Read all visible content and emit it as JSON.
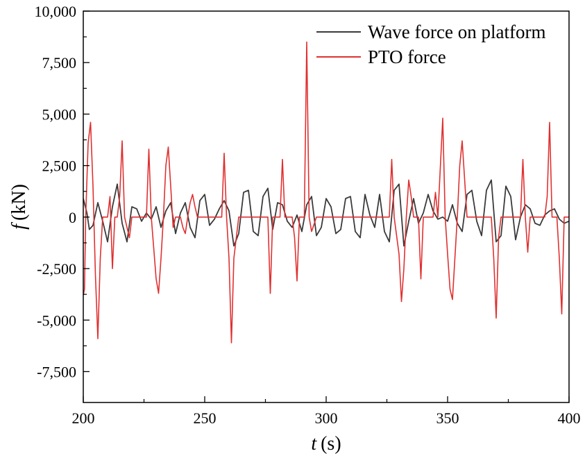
{
  "chart_data": {
    "type": "line",
    "title": "",
    "xlabel": "t",
    "xlabel_unit": "(s)",
    "ylabel": "f",
    "ylabel_unit": "(kN)",
    "xlim": [
      200,
      400
    ],
    "ylim": [
      -9000,
      10000
    ],
    "x_ticks": [
      200,
      250,
      300,
      350,
      400
    ],
    "x_tick_labels": [
      "200",
      "250",
      "300",
      "350",
      "400"
    ],
    "y_ticks": [
      -7500,
      -5000,
      -2500,
      0,
      2500,
      5000,
      7500,
      10000
    ],
    "y_tick_labels": [
      "-7,500",
      "-5,000",
      "-2,500",
      "0",
      "2,500",
      "5,000",
      "7,500",
      "10,000"
    ],
    "grid": false,
    "legend_position": "top-right",
    "colors": {
      "wave": "#3a3a3a",
      "pto": "#e03030"
    },
    "series": [
      {
        "name": "Wave force on platform",
        "x": [
          200,
          201.5,
          202.5,
          204,
          206,
          208,
          210,
          212,
          214,
          216,
          218,
          220,
          222,
          224,
          226,
          228,
          230,
          232,
          234,
          236,
          238,
          240,
          242,
          244,
          246,
          248,
          250,
          252,
          254,
          256,
          258,
          260,
          262,
          264,
          266,
          268,
          270,
          272,
          274,
          276,
          278,
          280,
          282,
          284,
          286,
          288,
          290,
          292,
          294,
          296,
          298,
          300,
          302,
          304,
          306,
          308,
          310,
          312,
          314,
          316,
          318,
          320,
          322,
          324,
          326,
          328,
          330,
          332,
          334,
          336,
          338,
          340,
          342,
          344,
          346,
          348,
          350,
          352,
          354,
          356,
          358,
          360,
          362,
          364,
          366,
          368,
          370,
          372,
          374,
          376,
          378,
          380,
          382,
          384,
          386,
          388,
          390,
          392,
          394,
          396,
          398,
          400
        ],
        "y": [
          900,
          200,
          -600,
          -400,
          700,
          -200,
          -1200,
          500,
          1600,
          -300,
          -1200,
          500,
          400,
          -200,
          200,
          -100,
          500,
          -500,
          300,
          700,
          -800,
          200,
          700,
          -500,
          -1000,
          800,
          1100,
          -400,
          -100,
          400,
          800,
          300,
          -1400,
          -800,
          1200,
          1300,
          -700,
          -900,
          1000,
          1400,
          -600,
          700,
          600,
          -200,
          -500,
          100,
          -700,
          600,
          1000,
          -900,
          -500,
          900,
          500,
          -800,
          -600,
          900,
          1000,
          -700,
          -1000,
          1100,
          100,
          -500,
          1100,
          -700,
          -1200,
          1300,
          1600,
          -1400,
          -200,
          900,
          -300,
          200,
          1100,
          300,
          -100,
          0,
          -200,
          600,
          -300,
          -700,
          1100,
          1300,
          -200,
          -900,
          1300,
          1800,
          -1200,
          -900,
          1500,
          1000,
          -1100,
          0,
          600,
          400,
          -300,
          -400,
          100,
          300,
          400,
          -100,
          -300,
          -200
        ]
      },
      {
        "name": "PTO force",
        "x": [
          200,
          200.5,
          201,
          202,
          203,
          204,
          205,
          206,
          207,
          208,
          210,
          211,
          212,
          213,
          214,
          215,
          216,
          217,
          218,
          219,
          220,
          221,
          222,
          223,
          224,
          225,
          226,
          227,
          228,
          229,
          230,
          231,
          232,
          233,
          234,
          235,
          236,
          237,
          238,
          239,
          240,
          241,
          242,
          243,
          244,
          245,
          246,
          247,
          248,
          249,
          250,
          252,
          254,
          256,
          257,
          258,
          259,
          260,
          261,
          262,
          264,
          266,
          268,
          270,
          272,
          274,
          275,
          276,
          277,
          278,
          280,
          281,
          282,
          283,
          284,
          286,
          287,
          288,
          289,
          290,
          291,
          292,
          293,
          294,
          296,
          298,
          300,
          302,
          304,
          306,
          308,
          310,
          312,
          314,
          316,
          318,
          320,
          322,
          324,
          326,
          327,
          328,
          330,
          331,
          332,
          333,
          334,
          335,
          336,
          338,
          339,
          340,
          342,
          344,
          345,
          346,
          348,
          349,
          350,
          351,
          352,
          353,
          354,
          355,
          356,
          358,
          360,
          362,
          364,
          366,
          368,
          369,
          370,
          371,
          372,
          374,
          376,
          378,
          380,
          381,
          382,
          383,
          384,
          386,
          388,
          390,
          391,
          392,
          393,
          394,
          395,
          396,
          397,
          398,
          400
        ],
        "y": [
          -3800,
          -3500,
          0,
          3600,
          4600,
          1500,
          -2800,
          -5900,
          -2000,
          0,
          0,
          1000,
          -2500,
          0,
          0,
          1000,
          3700,
          0,
          -500,
          -1000,
          0,
          0,
          0,
          0,
          0,
          0,
          0,
          3300,
          0,
          -1500,
          -3000,
          -3700,
          -2000,
          0,
          2500,
          3400,
          1500,
          -500,
          0,
          0,
          0,
          -500,
          -800,
          0,
          700,
          1100,
          500,
          0,
          0,
          0,
          0,
          0,
          0,
          0,
          0,
          3100,
          0,
          -2000,
          -6100,
          -2000,
          0,
          0,
          0,
          0,
          0,
          0,
          0,
          0,
          -3700,
          0,
          0,
          0,
          2800,
          0,
          0,
          0,
          -1000,
          -3100,
          0,
          0,
          0,
          8500,
          0,
          -700,
          0,
          0,
          0,
          0,
          0,
          0,
          0,
          0,
          0,
          0,
          0,
          0,
          0,
          0,
          0,
          0,
          2800,
          0,
          -1800,
          -4100,
          -2500,
          0,
          1800,
          1000,
          0,
          0,
          -3000,
          0,
          0,
          0,
          1200,
          0,
          4800,
          0,
          -1800,
          -3500,
          -4000,
          -2000,
          0,
          2500,
          3700,
          0,
          0,
          0,
          0,
          0,
          0,
          -2000,
          -4900,
          -1000,
          0,
          0,
          0,
          0,
          0,
          2800,
          0,
          -1700,
          0,
          0,
          0,
          0,
          1000,
          4600,
          0,
          0,
          0,
          -2000,
          -4700,
          0,
          0
        ]
      }
    ]
  }
}
